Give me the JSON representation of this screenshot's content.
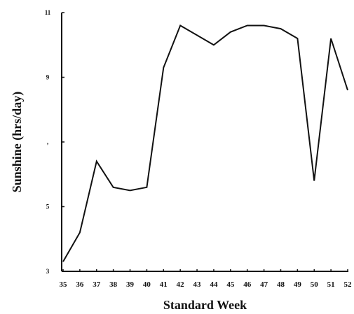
{
  "chart_data": {
    "type": "line",
    "xlabel": "Standard Week",
    "ylabel": "Sunshine (hrs/day)",
    "x": [
      35,
      36,
      37,
      38,
      39,
      40,
      41,
      42,
      43,
      44,
      45,
      46,
      47,
      48,
      49,
      50,
      51,
      52
    ],
    "x_tick_labels": [
      "35",
      "36",
      "37",
      "38",
      "39",
      "40",
      "41",
      "42",
      "43",
      "44",
      "45",
      "46",
      "47",
      "48",
      "49",
      "50",
      "51",
      "52"
    ],
    "y_ticks": [
      {
        "value": 3,
        "label": "3"
      },
      {
        "value": 5,
        "label": "5"
      },
      {
        "value": 7,
        "label": ","
      },
      {
        "value": 9,
        "label": "9"
      },
      {
        "value": 11,
        "label": "11"
      }
    ],
    "ylim": [
      3,
      11
    ],
    "grid": false,
    "series": [
      {
        "values": [
          3.3,
          4.2,
          6.4,
          5.6,
          5.5,
          5.6,
          9.3,
          10.6,
          10.3,
          10.0,
          10.4,
          10.6,
          10.6,
          10.5,
          10.2,
          5.8,
          10.2,
          8.6
        ],
        "color": "#111111"
      }
    ]
  }
}
